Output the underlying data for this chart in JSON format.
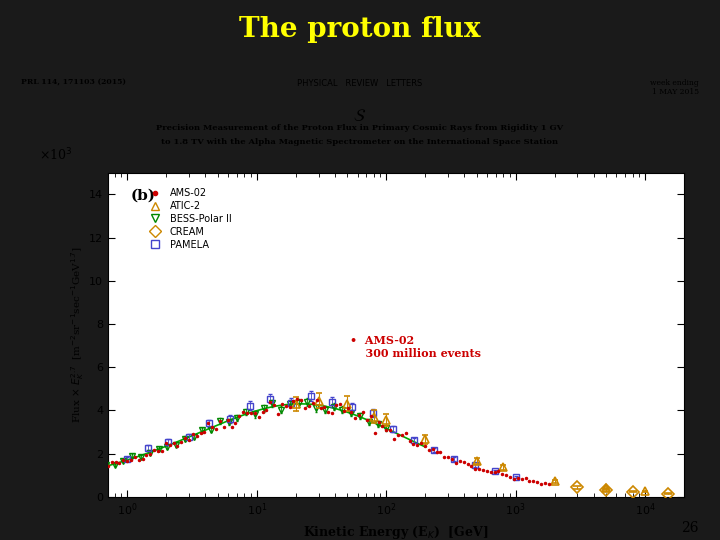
{
  "title": "The proton flux",
  "title_color": "#ffff00",
  "bg_color": "#1a1a1a",
  "paper_bg": "#ffffff",
  "subtitle_line1": "Precision Measurement of the Proton Flux in Primary Cosmic Rays from Rigidity 1 GV",
  "subtitle_line2": "to 1.8 TV with the Alpha Magnetic Spectrometer on the International Space Station",
  "journal_left": "PRL 114, 171103 (2015)",
  "journal_center": "PHYSICAL   REVIEW   LETTERS",
  "journal_right": "week ending\n1 MAY 2015",
  "panel_label": "(b)",
  "xlabel": "Kinetic Energy (E$_K$)  [GeV]",
  "ylabel": "Flux $\\times$ $E_K^{2.7}$  [m$^{-2}$sr$^{-1}$sec$^{-1}$GeV$^{1.7}$]",
  "y_multiplier": "×10$^3$",
  "xlim_log": [
    -0.15,
    4.3
  ],
  "ylim": [
    0,
    15
  ],
  "annotation_color": "#cc0000",
  "page_number": "26"
}
